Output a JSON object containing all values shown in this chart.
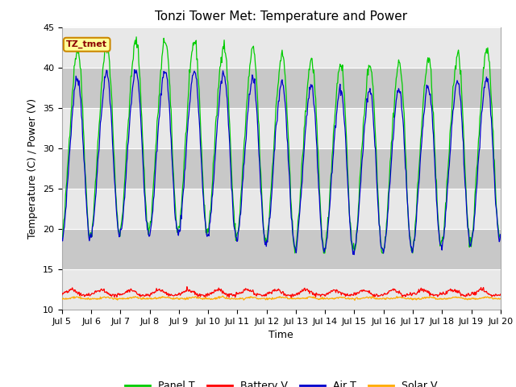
{
  "title": "Tonzi Tower Met: Temperature and Power",
  "xlabel": "Time",
  "ylabel": "Temperature (C) / Power (V)",
  "ylim": [
    10,
    45
  ],
  "xlim_start": 5.0,
  "xlim_end": 20.0,
  "xtick_positions": [
    5,
    6,
    7,
    8,
    9,
    10,
    11,
    12,
    13,
    14,
    15,
    16,
    17,
    18,
    19,
    20
  ],
  "xtick_labels": [
    "Jul 5",
    "Jul 6",
    "Jul 7",
    "Jul 8",
    "Jul 9",
    "Jul 10",
    "Jul 11",
    "Jul 12",
    "Jul 13",
    "Jul 14",
    "Jul 15",
    "Jul 16",
    "Jul 17",
    "Jul 18",
    "Jul 19",
    "Jul 20"
  ],
  "ytick_positions": [
    10,
    15,
    20,
    25,
    30,
    35,
    40,
    45
  ],
  "panel_color": "#00cc00",
  "battery_color": "#ff0000",
  "air_color": "#0000cc",
  "solar_color": "#ffaa00",
  "plot_bg_color": "#e8e8e8",
  "band_color": "#d0d0d0",
  "annotation_text": "TZ_tmet",
  "annotation_bg": "#ffff99",
  "annotation_border": "#cc8800",
  "legend_entries": [
    "Panel T",
    "Battery V",
    "Air T",
    "Solar V"
  ],
  "title_fontsize": 11,
  "axis_label_fontsize": 9,
  "tick_fontsize": 8
}
